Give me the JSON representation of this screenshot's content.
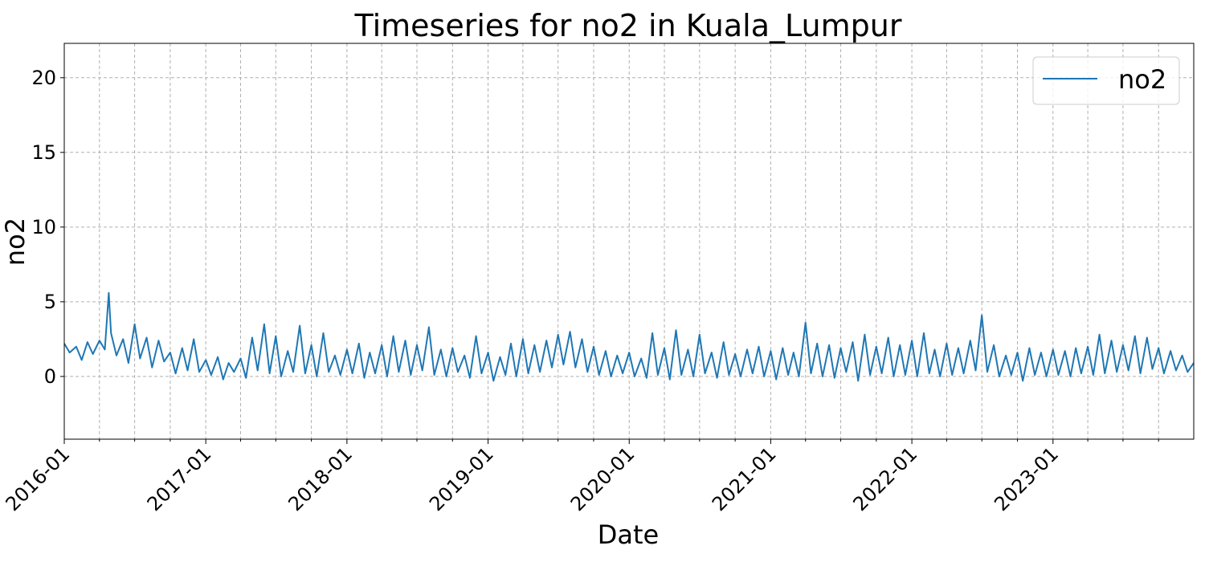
{
  "chart_data": {
    "type": "line",
    "title": "Timeseries for no2 in Kuala_Lumpur",
    "xlabel": "Date",
    "ylabel": "no2",
    "x_range": [
      "2016-01-01",
      "2023-12-31"
    ],
    "ylim": [
      -4.2,
      22.3
    ],
    "y_ticks": [
      0,
      5,
      10,
      15,
      20
    ],
    "x_tick_labels": [
      "2016-01",
      "2017-01",
      "2018-01",
      "2019-01",
      "2020-01",
      "2021-01",
      "2022-01",
      "2023-01"
    ],
    "x_tick_dates": [
      "2016-01-01",
      "2017-01-01",
      "2018-01-01",
      "2019-01-01",
      "2020-01-01",
      "2021-01-01",
      "2022-01-01",
      "2023-01-01"
    ],
    "minor_x_tick_dates": [
      "2016-04-01",
      "2016-07-01",
      "2016-10-01",
      "2017-04-01",
      "2017-07-01",
      "2017-10-01",
      "2018-04-01",
      "2018-07-01",
      "2018-10-01",
      "2019-04-01",
      "2019-07-01",
      "2019-10-01",
      "2020-04-01",
      "2020-07-01",
      "2020-10-01",
      "2021-04-01",
      "2021-07-01",
      "2021-10-01",
      "2022-04-01",
      "2022-07-01",
      "2022-10-01",
      "2023-04-01",
      "2023-07-01",
      "2023-10-01"
    ],
    "grid": true,
    "legend_position": "top-right",
    "series": [
      {
        "name": "no2",
        "color": "#1f77b4",
        "points": [
          [
            "2016-01-01",
            2.2
          ],
          [
            "2016-01-15",
            1.6
          ],
          [
            "2016-02-01",
            2.0
          ],
          [
            "2016-02-15",
            1.1
          ],
          [
            "2016-03-01",
            2.3
          ],
          [
            "2016-03-15",
            1.5
          ],
          [
            "2016-04-01",
            2.4
          ],
          [
            "2016-04-15",
            1.8
          ],
          [
            "2016-04-25",
            5.6
          ],
          [
            "2016-05-01",
            2.9
          ],
          [
            "2016-05-15",
            1.4
          ],
          [
            "2016-06-01",
            2.5
          ],
          [
            "2016-06-15",
            0.9
          ],
          [
            "2016-07-01",
            3.5
          ],
          [
            "2016-07-15",
            1.2
          ],
          [
            "2016-08-01",
            2.6
          ],
          [
            "2016-08-15",
            0.6
          ],
          [
            "2016-09-01",
            2.4
          ],
          [
            "2016-09-15",
            1.0
          ],
          [
            "2016-10-01",
            1.6
          ],
          [
            "2016-10-15",
            0.2
          ],
          [
            "2016-11-01",
            1.9
          ],
          [
            "2016-11-15",
            0.4
          ],
          [
            "2016-12-01",
            2.5
          ],
          [
            "2016-12-15",
            0.3
          ],
          [
            "2017-01-01",
            1.1
          ],
          [
            "2017-01-15",
            0.1
          ],
          [
            "2017-02-01",
            1.3
          ],
          [
            "2017-02-15",
            -0.2
          ],
          [
            "2017-03-01",
            0.9
          ],
          [
            "2017-03-15",
            0.3
          ],
          [
            "2017-04-01",
            1.2
          ],
          [
            "2017-04-15",
            -0.1
          ],
          [
            "2017-05-01",
            2.6
          ],
          [
            "2017-05-15",
            0.4
          ],
          [
            "2017-06-01",
            3.5
          ],
          [
            "2017-06-15",
            0.2
          ],
          [
            "2017-07-01",
            2.7
          ],
          [
            "2017-07-15",
            0.0
          ],
          [
            "2017-08-01",
            1.7
          ],
          [
            "2017-08-15",
            0.3
          ],
          [
            "2017-09-01",
            3.4
          ],
          [
            "2017-09-15",
            0.2
          ],
          [
            "2017-10-01",
            2.1
          ],
          [
            "2017-10-15",
            0.0
          ],
          [
            "2017-11-01",
            2.9
          ],
          [
            "2017-11-15",
            0.3
          ],
          [
            "2017-12-01",
            1.4
          ],
          [
            "2017-12-15",
            0.1
          ],
          [
            "2018-01-01",
            1.8
          ],
          [
            "2018-01-15",
            0.2
          ],
          [
            "2018-02-01",
            2.2
          ],
          [
            "2018-02-15",
            -0.1
          ],
          [
            "2018-03-01",
            1.6
          ],
          [
            "2018-03-15",
            0.2
          ],
          [
            "2018-04-01",
            2.1
          ],
          [
            "2018-04-15",
            0.0
          ],
          [
            "2018-05-01",
            2.7
          ],
          [
            "2018-05-15",
            0.3
          ],
          [
            "2018-06-01",
            2.4
          ],
          [
            "2018-06-15",
            0.1
          ],
          [
            "2018-07-01",
            2.1
          ],
          [
            "2018-07-15",
            0.4
          ],
          [
            "2018-08-01",
            3.3
          ],
          [
            "2018-08-15",
            0.1
          ],
          [
            "2018-09-01",
            1.8
          ],
          [
            "2018-09-15",
            0.0
          ],
          [
            "2018-10-01",
            1.9
          ],
          [
            "2018-10-15",
            0.3
          ],
          [
            "2018-11-01",
            1.4
          ],
          [
            "2018-11-15",
            -0.1
          ],
          [
            "2018-12-01",
            2.7
          ],
          [
            "2018-12-15",
            0.2
          ],
          [
            "2019-01-01",
            1.6
          ],
          [
            "2019-01-15",
            -0.3
          ],
          [
            "2019-02-01",
            1.3
          ],
          [
            "2019-02-15",
            0.1
          ],
          [
            "2019-03-01",
            2.2
          ],
          [
            "2019-03-15",
            0.0
          ],
          [
            "2019-04-01",
            2.5
          ],
          [
            "2019-04-15",
            0.2
          ],
          [
            "2019-05-01",
            2.1
          ],
          [
            "2019-05-15",
            0.3
          ],
          [
            "2019-06-01",
            2.4
          ],
          [
            "2019-06-15",
            0.6
          ],
          [
            "2019-07-01",
            2.8
          ],
          [
            "2019-07-15",
            0.8
          ],
          [
            "2019-08-01",
            3.0
          ],
          [
            "2019-08-15",
            0.6
          ],
          [
            "2019-09-01",
            2.5
          ],
          [
            "2019-09-15",
            0.3
          ],
          [
            "2019-10-01",
            2.0
          ],
          [
            "2019-10-15",
            0.1
          ],
          [
            "2019-11-01",
            1.7
          ],
          [
            "2019-11-15",
            0.0
          ],
          [
            "2019-12-01",
            1.4
          ],
          [
            "2019-12-15",
            0.2
          ],
          [
            "2020-01-01",
            1.6
          ],
          [
            "2020-01-15",
            0.0
          ],
          [
            "2020-02-01",
            1.2
          ],
          [
            "2020-02-15",
            -0.1
          ],
          [
            "2020-03-01",
            2.9
          ],
          [
            "2020-03-15",
            0.1
          ],
          [
            "2020-04-01",
            1.9
          ],
          [
            "2020-04-15",
            -0.2
          ],
          [
            "2020-05-01",
            3.1
          ],
          [
            "2020-05-15",
            0.1
          ],
          [
            "2020-06-01",
            1.8
          ],
          [
            "2020-06-15",
            0.0
          ],
          [
            "2020-07-01",
            2.8
          ],
          [
            "2020-07-15",
            0.2
          ],
          [
            "2020-08-01",
            1.6
          ],
          [
            "2020-08-15",
            -0.1
          ],
          [
            "2020-09-01",
            2.3
          ],
          [
            "2020-09-15",
            0.1
          ],
          [
            "2020-10-01",
            1.5
          ],
          [
            "2020-10-15",
            0.0
          ],
          [
            "2020-11-01",
            1.8
          ],
          [
            "2020-11-15",
            0.2
          ],
          [
            "2020-12-01",
            2.0
          ],
          [
            "2020-12-15",
            0.0
          ],
          [
            "2021-01-01",
            1.7
          ],
          [
            "2021-01-15",
            -0.2
          ],
          [
            "2021-02-01",
            1.9
          ],
          [
            "2021-02-15",
            0.1
          ],
          [
            "2021-03-01",
            1.6
          ],
          [
            "2021-03-15",
            0.0
          ],
          [
            "2021-04-01",
            3.6
          ],
          [
            "2021-04-15",
            0.2
          ],
          [
            "2021-05-01",
            2.2
          ],
          [
            "2021-05-15",
            0.0
          ],
          [
            "2021-06-01",
            2.1
          ],
          [
            "2021-06-15",
            -0.1
          ],
          [
            "2021-07-01",
            1.9
          ],
          [
            "2021-07-15",
            0.3
          ],
          [
            "2021-08-01",
            2.3
          ],
          [
            "2021-08-15",
            -0.3
          ],
          [
            "2021-09-01",
            2.8
          ],
          [
            "2021-09-15",
            0.1
          ],
          [
            "2021-10-01",
            2.0
          ],
          [
            "2021-10-15",
            0.2
          ],
          [
            "2021-11-01",
            2.6
          ],
          [
            "2021-11-15",
            0.0
          ],
          [
            "2021-12-01",
            2.1
          ],
          [
            "2021-12-15",
            0.1
          ],
          [
            "2022-01-01",
            2.4
          ],
          [
            "2022-01-15",
            0.0
          ],
          [
            "2022-02-01",
            2.9
          ],
          [
            "2022-02-15",
            0.2
          ],
          [
            "2022-03-01",
            1.8
          ],
          [
            "2022-03-15",
            0.0
          ],
          [
            "2022-04-01",
            2.2
          ],
          [
            "2022-04-15",
            0.1
          ],
          [
            "2022-05-01",
            1.9
          ],
          [
            "2022-05-15",
            0.2
          ],
          [
            "2022-06-01",
            2.4
          ],
          [
            "2022-06-15",
            0.4
          ],
          [
            "2022-07-01",
            4.1
          ],
          [
            "2022-07-15",
            0.3
          ],
          [
            "2022-08-01",
            2.1
          ],
          [
            "2022-08-15",
            0.0
          ],
          [
            "2022-09-01",
            1.4
          ],
          [
            "2022-09-15",
            0.1
          ],
          [
            "2022-10-01",
            1.6
          ],
          [
            "2022-10-15",
            -0.3
          ],
          [
            "2022-11-01",
            1.9
          ],
          [
            "2022-11-15",
            0.1
          ],
          [
            "2022-12-01",
            1.6
          ],
          [
            "2022-12-15",
            0.0
          ],
          [
            "2023-01-01",
            1.8
          ],
          [
            "2023-01-15",
            0.1
          ],
          [
            "2023-02-01",
            1.7
          ],
          [
            "2023-02-15",
            0.0
          ],
          [
            "2023-03-01",
            1.9
          ],
          [
            "2023-03-15",
            0.2
          ],
          [
            "2023-04-01",
            2.0
          ],
          [
            "2023-04-15",
            0.1
          ],
          [
            "2023-05-01",
            2.8
          ],
          [
            "2023-05-15",
            0.2
          ],
          [
            "2023-06-01",
            2.4
          ],
          [
            "2023-06-15",
            0.3
          ],
          [
            "2023-07-01",
            2.1
          ],
          [
            "2023-07-15",
            0.4
          ],
          [
            "2023-08-01",
            2.7
          ],
          [
            "2023-08-15",
            0.2
          ],
          [
            "2023-09-01",
            2.6
          ],
          [
            "2023-09-15",
            0.5
          ],
          [
            "2023-10-01",
            1.9
          ],
          [
            "2023-10-15",
            0.2
          ],
          [
            "2023-11-01",
            1.7
          ],
          [
            "2023-11-15",
            0.4
          ],
          [
            "2023-12-01",
            1.4
          ],
          [
            "2023-12-15",
            0.3
          ],
          [
            "2023-12-31",
            0.9
          ]
        ]
      }
    ]
  }
}
